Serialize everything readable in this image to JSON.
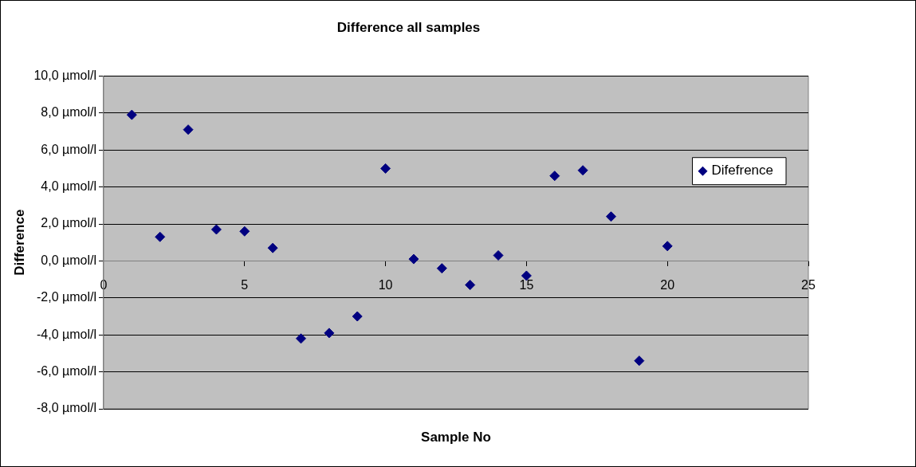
{
  "chart_data": {
    "type": "scatter",
    "title": "Difference all samples",
    "xlabel": "Sample No",
    "ylabel": "Difference",
    "x": [
      1,
      2,
      3,
      4,
      5,
      6,
      7,
      8,
      9,
      10,
      11,
      12,
      13,
      14,
      15,
      16,
      17,
      18,
      19,
      20
    ],
    "series": [
      {
        "name": "Difefrence",
        "color": "#000080",
        "values": [
          7.9,
          1.3,
          7.1,
          1.7,
          1.6,
          0.7,
          -4.2,
          -3.9,
          -3.0,
          5.0,
          0.1,
          -0.4,
          -1.3,
          0.3,
          -0.8,
          4.6,
          4.9,
          2.4,
          -5.4,
          0.8
        ]
      }
    ],
    "xlim": [
      0,
      25
    ],
    "xticks": [
      0,
      5,
      10,
      15,
      20,
      25
    ],
    "ylim": [
      -8,
      10
    ],
    "yticks": [
      {
        "value": -8,
        "label": "-8,0 µmol/l"
      },
      {
        "value": -6,
        "label": "-6,0 µmol/l"
      },
      {
        "value": -4,
        "label": "-4,0 µmol/l"
      },
      {
        "value": -2,
        "label": "-2,0 µmol/l"
      },
      {
        "value": 0,
        "label": "0,0 µmol/l"
      },
      {
        "value": 2,
        "label": "2,0 µmol/l"
      },
      {
        "value": 4,
        "label": "4,0 µmol/l"
      },
      {
        "value": 6,
        "label": "6,0 µmol/l"
      },
      {
        "value": 8,
        "label": "8,0 µmol/l"
      },
      {
        "value": 10,
        "label": "10,0 µmol/l"
      }
    ],
    "grid": "y",
    "legend": "right",
    "marker": "diamond"
  }
}
